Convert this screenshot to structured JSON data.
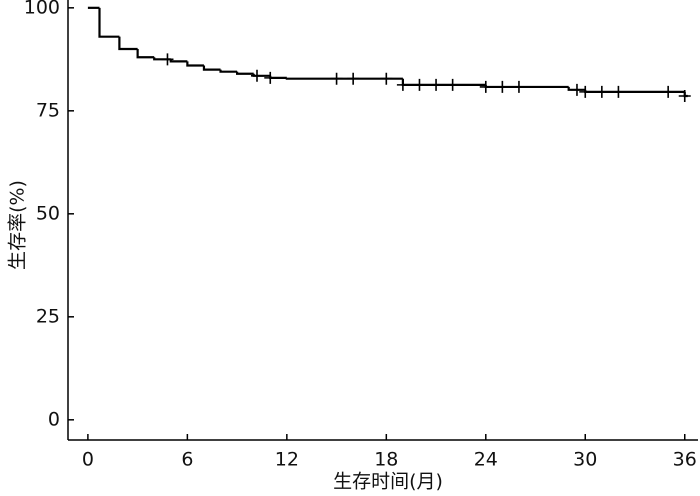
{
  "chart_data": {
    "type": "step",
    "y_label": "生存率(%)",
    "x_label": "生存时间(月)",
    "x": [
      0,
      0.7,
      1.9,
      3.0,
      4.0,
      5.0,
      6.0,
      7.0,
      8.0,
      9.0,
      10.0,
      11.0,
      12.0,
      19.0,
      24.0,
      29.0,
      30.0,
      36.0
    ],
    "values": [
      100,
      93,
      90,
      88,
      87.5,
      87,
      86,
      85,
      84.5,
      84,
      83.5,
      83,
      82.8,
      81.3,
      80.8,
      80.1,
      79.6,
      78.6
    ],
    "censored": {
      "x": [
        4.8,
        10.2,
        11.0,
        15,
        16,
        18,
        19,
        20,
        21,
        22,
        24,
        25,
        26,
        29.5,
        30,
        31,
        32,
        35,
        36
      ],
      "values": [
        87.5,
        83.5,
        83,
        82.8,
        82.8,
        82.8,
        81.3,
        81.3,
        81.3,
        81.3,
        80.8,
        80.8,
        80.8,
        80.1,
        79.6,
        79.6,
        79.6,
        79.6,
        78.6
      ]
    },
    "color": "#000000",
    "xlim": [
      -1.2,
      36.8
    ],
    "ylim": [
      -4.9,
      101.9
    ],
    "xticks": [
      0,
      6,
      12,
      18,
      24,
      30,
      36
    ],
    "yticks": [
      0,
      25,
      50,
      75,
      100
    ]
  }
}
